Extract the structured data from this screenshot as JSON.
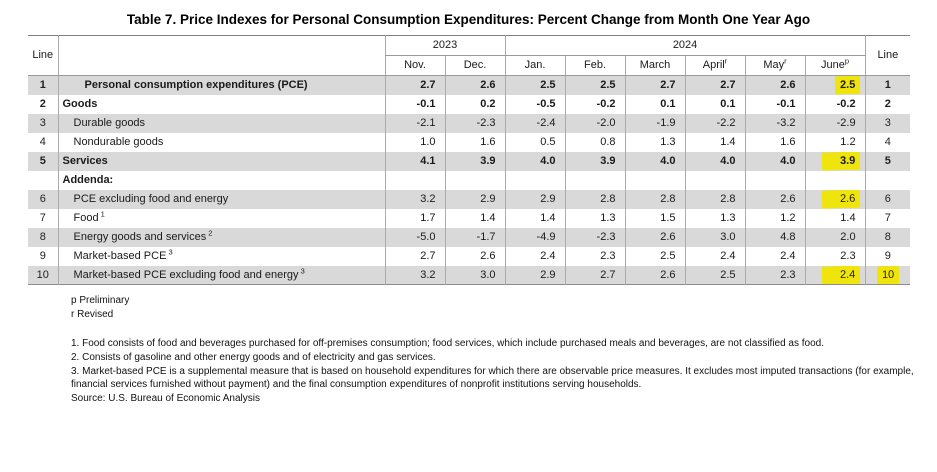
{
  "page": {
    "title": "Table 7. Price Indexes for Personal Consumption Expenditures: Percent Change from Month One Year Ago"
  },
  "colors": {
    "highlight_yellow": "#efe40c",
    "row_shade_gray": "#d9d9d9"
  },
  "table": {
    "line_header_left": "Line",
    "line_header_right": "Line",
    "year_2023": "2023",
    "year_2024": "2024",
    "months": [
      {
        "label": "Nov.",
        "sup": ""
      },
      {
        "label": "Dec.",
        "sup": ""
      },
      {
        "label": "Jan.",
        "sup": ""
      },
      {
        "label": "Feb.",
        "sup": ""
      },
      {
        "label": "March",
        "sup": ""
      },
      {
        "label": "April",
        "sup": "r"
      },
      {
        "label": "May",
        "sup": "r"
      },
      {
        "label": "June",
        "sup": "p"
      }
    ],
    "rows": [
      {
        "line": "1",
        "label": "Personal consumption expenditures (PCE)",
        "sup": "",
        "indent": 2,
        "bold": true,
        "shaded": true,
        "values": [
          "2.7",
          "2.6",
          "2.5",
          "2.5",
          "2.7",
          "2.7",
          "2.6",
          "2.5"
        ],
        "highlight_cols": [
          7
        ],
        "highlight_line": false
      },
      {
        "line": "2",
        "label": "Goods",
        "sup": "",
        "indent": 0,
        "bold": true,
        "shaded": false,
        "values": [
          "-0.1",
          "0.2",
          "-0.5",
          "-0.2",
          "0.1",
          "0.1",
          "-0.1",
          "-0.2"
        ],
        "highlight_cols": [],
        "highlight_line": false
      },
      {
        "line": "3",
        "label": "Durable goods",
        "sup": "",
        "indent": 1,
        "bold": false,
        "shaded": true,
        "values": [
          "-2.1",
          "-2.3",
          "-2.4",
          "-2.0",
          "-1.9",
          "-2.2",
          "-3.2",
          "-2.9"
        ],
        "highlight_cols": [],
        "highlight_line": false
      },
      {
        "line": "4",
        "label": "Nondurable goods",
        "sup": "",
        "indent": 1,
        "bold": false,
        "shaded": false,
        "values": [
          "1.0",
          "1.6",
          "0.5",
          "0.8",
          "1.3",
          "1.4",
          "1.6",
          "1.2"
        ],
        "highlight_cols": [],
        "highlight_line": false
      },
      {
        "line": "5",
        "label": "Services",
        "sup": "",
        "indent": 0,
        "bold": true,
        "shaded": true,
        "values": [
          "4.1",
          "3.9",
          "4.0",
          "3.9",
          "4.0",
          "4.0",
          "4.0",
          "3.9"
        ],
        "highlight_cols": [
          7
        ],
        "highlight_line": false
      },
      {
        "line": "",
        "label": "Addenda:",
        "sup": "",
        "indent": 0,
        "bold": true,
        "shaded": false,
        "values": [
          "",
          "",
          "",
          "",
          "",
          "",
          "",
          ""
        ],
        "highlight_cols": [],
        "highlight_line": false
      },
      {
        "line": "6",
        "label": "PCE excluding food and energy",
        "sup": "",
        "indent": 1,
        "bold": false,
        "shaded": true,
        "values": [
          "3.2",
          "2.9",
          "2.9",
          "2.8",
          "2.8",
          "2.8",
          "2.6",
          "2.6"
        ],
        "highlight_cols": [
          7
        ],
        "highlight_line": false
      },
      {
        "line": "7",
        "label": "Food",
        "sup": "1",
        "indent": 1,
        "bold": false,
        "shaded": false,
        "values": [
          "1.7",
          "1.4",
          "1.4",
          "1.3",
          "1.5",
          "1.3",
          "1.2",
          "1.4"
        ],
        "highlight_cols": [],
        "highlight_line": false
      },
      {
        "line": "8",
        "label": "Energy goods and services",
        "sup": "2",
        "indent": 1,
        "bold": false,
        "shaded": true,
        "values": [
          "-5.0",
          "-1.7",
          "-4.9",
          "-2.3",
          "2.6",
          "3.0",
          "4.8",
          "2.0"
        ],
        "highlight_cols": [],
        "highlight_line": false
      },
      {
        "line": "9",
        "label": "Market-based PCE",
        "sup": "3",
        "indent": 1,
        "bold": false,
        "shaded": false,
        "values": [
          "2.7",
          "2.6",
          "2.4",
          "2.3",
          "2.5",
          "2.4",
          "2.4",
          "2.3"
        ],
        "highlight_cols": [],
        "highlight_line": false
      },
      {
        "line": "10",
        "label": "Market-based PCE excluding food and energy",
        "sup": "3",
        "indent": 1,
        "bold": false,
        "shaded": true,
        "values": [
          "3.2",
          "3.0",
          "2.9",
          "2.7",
          "2.6",
          "2.5",
          "2.3",
          "2.4"
        ],
        "highlight_cols": [
          7
        ],
        "highlight_line": true
      }
    ]
  },
  "footnotes": {
    "preliminary": "p Preliminary",
    "revised": "r Revised",
    "note1": "1. Food consists of food and beverages purchased for off-premises consumption; food services, which include purchased meals and beverages, are not classified as food.",
    "note2": "2. Consists of gasoline and other energy goods and of electricity and gas services.",
    "note3": "3. Market-based PCE is a supplemental measure that is based on household expenditures for which there are observable price measures. It excludes most imputed transactions (for example, financial services furnished without payment) and the final consumption expenditures of nonprofit institutions serving households.",
    "source": "Source: U.S. Bureau of Economic Analysis"
  }
}
